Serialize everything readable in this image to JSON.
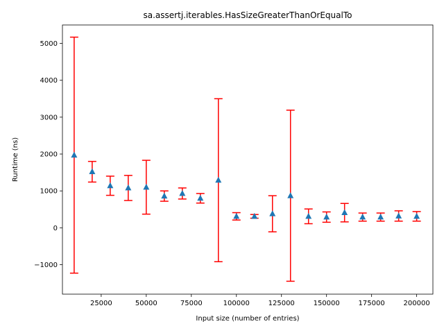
{
  "chart_data": {
    "type": "errorbar",
    "title": "sa.assertj.iterables.HasSizeGreaterThanOrEqualTo",
    "xlabel": "Input size (number of entries)",
    "ylabel": "Runtime (ns)",
    "xlim": [
      3500,
      209000
    ],
    "ylim": [
      -1800,
      5500
    ],
    "xticks": [
      25000,
      50000,
      75000,
      100000,
      125000,
      150000,
      175000,
      200000
    ],
    "yticks": [
      -1000,
      0,
      1000,
      2000,
      3000,
      4000,
      5000
    ],
    "grid": false,
    "marker_color": "#1f77b4",
    "errorbar_color": "#ff0000",
    "series": [
      {
        "x": [
          10000,
          20000,
          30000,
          40000,
          50000,
          60000,
          70000,
          80000,
          90000,
          100000,
          110000,
          120000,
          130000,
          140000,
          150000,
          160000,
          170000,
          180000,
          190000,
          200000
        ],
        "y": [
          1970,
          1520,
          1140,
          1080,
          1100,
          860,
          930,
          800,
          1290,
          310,
          310,
          380,
          870,
          310,
          290,
          410,
          290,
          290,
          320,
          310
        ],
        "err_low": [
          3200,
          280,
          260,
          340,
          730,
          140,
          150,
          130,
          2210,
          100,
          50,
          490,
          2320,
          200,
          140,
          250,
          110,
          110,
          140,
          130
        ],
        "err_high": [
          3200,
          280,
          260,
          340,
          730,
          140,
          150,
          130,
          2210,
          100,
          50,
          490,
          2320,
          200,
          140,
          250,
          110,
          110,
          140,
          130
        ]
      }
    ]
  }
}
